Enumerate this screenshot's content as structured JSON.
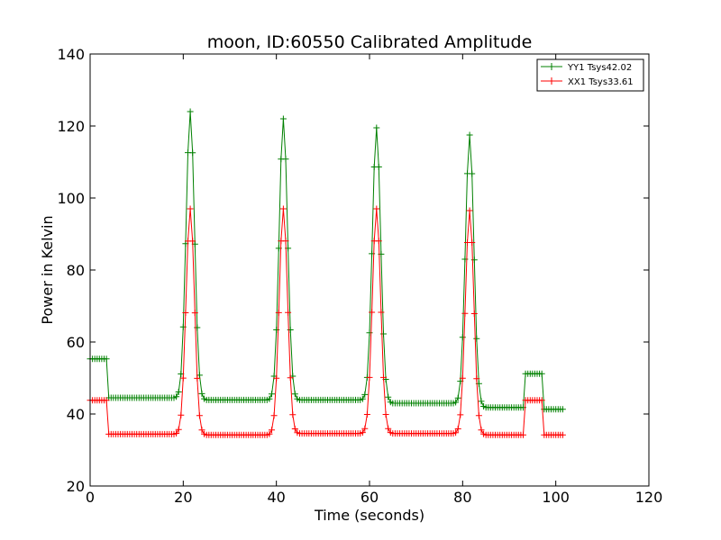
{
  "chart_data": {
    "type": "line",
    "title": "moon, ID:60550 Calibrated Amplitude",
    "xlabel": "Time (seconds)",
    "ylabel": "Power in Kelvin",
    "xlim": [
      0,
      120
    ],
    "ylim": [
      20,
      140
    ],
    "xticks": [
      0,
      20,
      40,
      60,
      80,
      100,
      120
    ],
    "yticks": [
      20,
      40,
      60,
      80,
      100,
      120,
      140
    ],
    "grid": false,
    "legend_position": "top-right",
    "series": [
      {
        "name": "YY1 Tsys42.02",
        "color": "#008000",
        "marker": "+",
        "baselines": [
          {
            "from": 0,
            "to": 4,
            "value": 55.3
          },
          {
            "from": 4,
            "to": 19,
            "value": 44.5
          },
          {
            "from": 24,
            "to": 39,
            "value": 43.9
          },
          {
            "from": 44,
            "to": 59,
            "value": 43.9
          },
          {
            "from": 64,
            "to": 79,
            "value": 43.0
          },
          {
            "from": 84,
            "to": 93.5,
            "value": 41.8
          },
          {
            "from": 93.5,
            "to": 97.5,
            "value": 51.2
          },
          {
            "from": 97.5,
            "to": 101.5,
            "value": 41.3
          }
        ],
        "peaks": [
          {
            "center": 21.5,
            "value": 124.0
          },
          {
            "center": 41.5,
            "value": 122.0
          },
          {
            "center": 61.5,
            "value": 119.5
          },
          {
            "center": 81.5,
            "value": 117.5
          }
        ]
      },
      {
        "name": "XX1 Tsys33.61",
        "color": "#ff0000",
        "marker": "+",
        "baselines": [
          {
            "from": 0,
            "to": 4,
            "value": 43.8
          },
          {
            "from": 4,
            "to": 19,
            "value": 34.4
          },
          {
            "from": 24,
            "to": 39,
            "value": 34.2
          },
          {
            "from": 44,
            "to": 59,
            "value": 34.6
          },
          {
            "from": 64,
            "to": 79,
            "value": 34.6
          },
          {
            "from": 84,
            "to": 93.5,
            "value": 34.2
          },
          {
            "from": 93.5,
            "to": 97.5,
            "value": 43.8
          },
          {
            "from": 97.5,
            "to": 101.5,
            "value": 34.2
          }
        ],
        "peaks": [
          {
            "center": 21.5,
            "value": 97.0
          },
          {
            "center": 41.5,
            "value": 97.0
          },
          {
            "center": 61.5,
            "value": 97.0
          },
          {
            "center": 81.5,
            "value": 96.5
          }
        ]
      }
    ]
  }
}
